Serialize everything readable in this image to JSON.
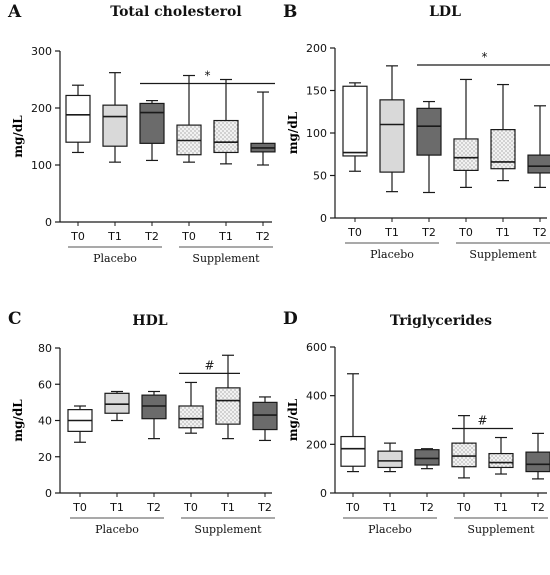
{
  "styles": {
    "white": "#ffffff",
    "light_gray": "#d9d9d9",
    "dotted_bg": "#f2f2f2",
    "dark_gray": "#6b6b6b",
    "stroke": "#1a1a1a"
  },
  "chart_data": [
    {
      "type": "box",
      "letter": "A",
      "title": "Total cholesterol",
      "ylabel": "mg/dL",
      "ylim": [
        0,
        300
      ],
      "yticks": [
        0,
        100,
        200,
        300
      ],
      "categories": [
        "T0",
        "T1",
        "T2",
        "T0",
        "T1",
        "T2"
      ],
      "groups": [
        {
          "label": "Placebo",
          "start": 0,
          "end": 2
        },
        {
          "label": "Supplement",
          "start": 3,
          "end": 5
        }
      ],
      "boxes": [
        {
          "min": 122,
          "q1": 140,
          "median": 188,
          "q3": 222,
          "max": 240,
          "fill": "white"
        },
        {
          "min": 105,
          "q1": 133,
          "median": 185,
          "q3": 205,
          "max": 262,
          "fill": "light_gray"
        },
        {
          "min": 108,
          "q1": 138,
          "median": 192,
          "q3": 208,
          "max": 213,
          "fill": "dark_gray"
        },
        {
          "min": 105,
          "q1": 118,
          "median": 143,
          "q3": 170,
          "max": 257,
          "fill": "dotted"
        },
        {
          "min": 102,
          "q1": 122,
          "median": 140,
          "q3": 178,
          "max": 250,
          "fill": "dotted"
        },
        {
          "min": 100,
          "q1": 123,
          "median": 130,
          "q3": 138,
          "max": 228,
          "fill": "dark_gray"
        }
      ],
      "significance": {
        "symbol": "*",
        "from": 2,
        "to": 5,
        "y": 243
      }
    },
    {
      "type": "box",
      "letter": "B",
      "title": "LDL",
      "ylabel": "mg/dL",
      "ylim": [
        0,
        200
      ],
      "yticks": [
        0,
        50,
        100,
        150,
        200
      ],
      "categories": [
        "T0",
        "T1",
        "T2",
        "T0",
        "T1",
        "T2"
      ],
      "groups": [
        {
          "label": "Placebo",
          "start": 0,
          "end": 2
        },
        {
          "label": "Supplement",
          "start": 3,
          "end": 5
        }
      ],
      "boxes": [
        {
          "min": 55,
          "q1": 73,
          "median": 77,
          "q3": 155,
          "max": 159,
          "fill": "white"
        },
        {
          "min": 31,
          "q1": 54,
          "median": 110,
          "q3": 139,
          "max": 179,
          "fill": "light_gray"
        },
        {
          "min": 30,
          "q1": 74,
          "median": 108,
          "q3": 129,
          "max": 137,
          "fill": "dark_gray"
        },
        {
          "min": 36,
          "q1": 56,
          "median": 71,
          "q3": 93,
          "max": 163,
          "fill": "dotted"
        },
        {
          "min": 44,
          "q1": 58,
          "median": 66,
          "q3": 104,
          "max": 157,
          "fill": "dotted"
        },
        {
          "min": 36,
          "q1": 53,
          "median": 61,
          "q3": 74,
          "max": 132,
          "fill": "dark_gray"
        }
      ],
      "significance": {
        "symbol": "*",
        "from": 2,
        "to": 5,
        "y": 180
      }
    },
    {
      "type": "box",
      "letter": "C",
      "title": "HDL",
      "ylabel": "mg/dL",
      "ylim": [
        0,
        80
      ],
      "yticks": [
        0,
        20,
        40,
        60,
        80
      ],
      "categories": [
        "T0",
        "T1",
        "T2",
        "T0",
        "T1",
        "T2"
      ],
      "groups": [
        {
          "label": "Placebo",
          "start": 0,
          "end": 2
        },
        {
          "label": "Supplement",
          "start": 3,
          "end": 5
        }
      ],
      "boxes": [
        {
          "min": 28,
          "q1": 34,
          "median": 40,
          "q3": 46,
          "max": 48,
          "fill": "white"
        },
        {
          "min": 40,
          "q1": 44,
          "median": 49,
          "q3": 55,
          "max": 56,
          "fill": "light_gray"
        },
        {
          "min": 30,
          "q1": 41,
          "median": 48,
          "q3": 54,
          "max": 56,
          "fill": "dark_gray"
        },
        {
          "min": 33,
          "q1": 36,
          "median": 41,
          "q3": 48,
          "max": 61,
          "fill": "dotted"
        },
        {
          "min": 30,
          "q1": 38,
          "median": 51,
          "q3": 58,
          "max": 76,
          "fill": "dotted"
        },
        {
          "min": 29,
          "q1": 35,
          "median": 43,
          "q3": 50,
          "max": 53,
          "fill": "dark_gray"
        }
      ],
      "significance": {
        "symbol": "#",
        "from": 3,
        "to": 4,
        "y": 66
      }
    },
    {
      "type": "box",
      "letter": "D",
      "title": "Triglycerides",
      "ylabel": "mg/dL",
      "ylim": [
        0,
        600
      ],
      "yticks": [
        0,
        200,
        400,
        600
      ],
      "categories": [
        "T0",
        "T1",
        "T2",
        "T0",
        "T1",
        "T2"
      ],
      "groups": [
        {
          "label": "Placebo",
          "start": 0,
          "end": 2
        },
        {
          "label": "Supplement",
          "start": 3,
          "end": 5
        }
      ],
      "boxes": [
        {
          "min": 88,
          "q1": 110,
          "median": 182,
          "q3": 232,
          "max": 490,
          "fill": "white"
        },
        {
          "min": 88,
          "q1": 105,
          "median": 132,
          "q3": 172,
          "max": 205,
          "fill": "light_gray"
        },
        {
          "min": 100,
          "q1": 115,
          "median": 142,
          "q3": 178,
          "max": 182,
          "fill": "dark_gray"
        },
        {
          "min": 62,
          "q1": 108,
          "median": 152,
          "q3": 205,
          "max": 318,
          "fill": "dotted"
        },
        {
          "min": 78,
          "q1": 105,
          "median": 125,
          "q3": 162,
          "max": 228,
          "fill": "dotted"
        },
        {
          "min": 58,
          "q1": 88,
          "median": 118,
          "q3": 168,
          "max": 245,
          "fill": "dark_gray"
        }
      ],
      "significance": {
        "symbol": "#",
        "from": 3,
        "to": 4,
        "y": 265
      }
    }
  ]
}
